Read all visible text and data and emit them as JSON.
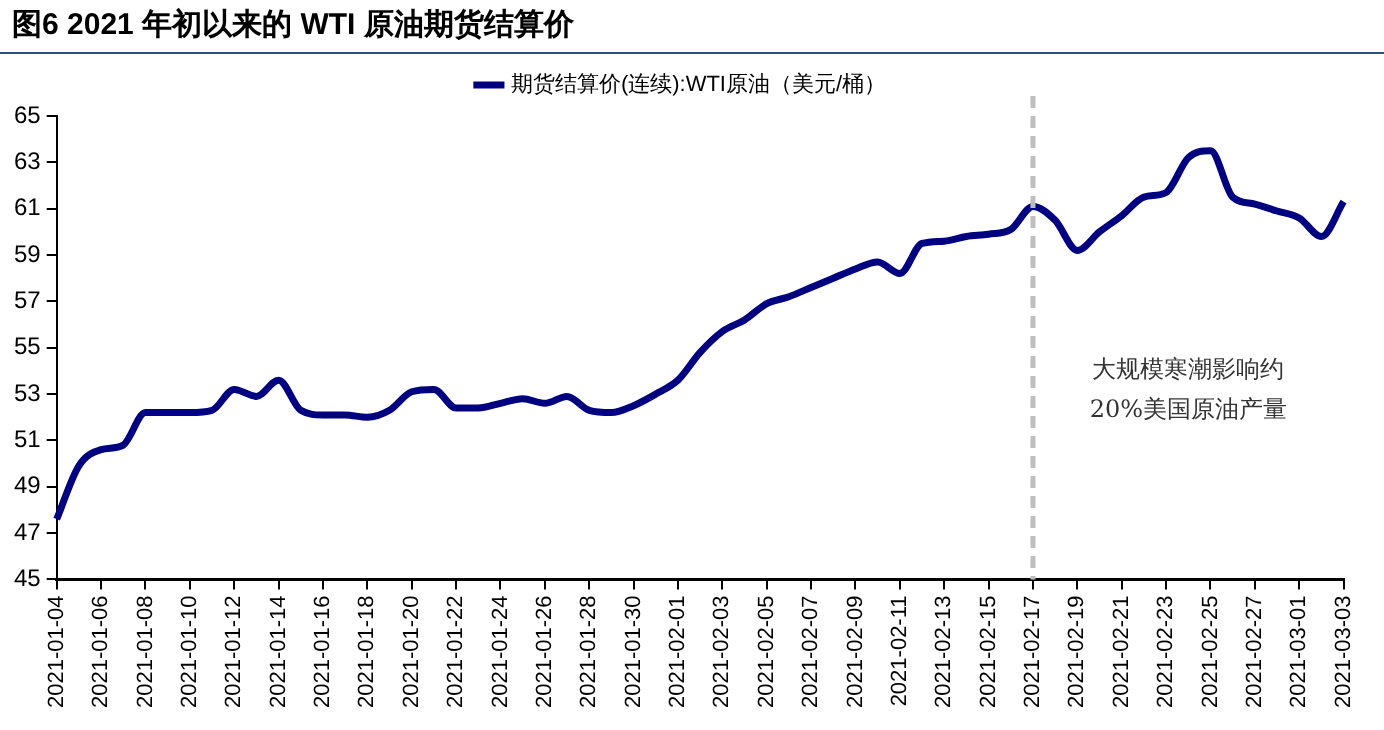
{
  "chart_data": {
    "type": "line",
    "title": "图6  2021 年初以来的 WTI 原油期货结算价",
    "categories": [
      "2021-01-04",
      null,
      "2021-01-06",
      null,
      "2021-01-08",
      null,
      "2021-01-10",
      null,
      "2021-01-12",
      null,
      "2021-01-14",
      null,
      "2021-01-16",
      null,
      "2021-01-18",
      null,
      "2021-01-20",
      null,
      "2021-01-22",
      null,
      "2021-01-24",
      null,
      "2021-01-26",
      null,
      "2021-01-28",
      null,
      "2021-01-30",
      null,
      "2021-02-01",
      null,
      "2021-02-03",
      null,
      "2021-02-05",
      null,
      "2021-02-07",
      null,
      "2021-02-09",
      null,
      "2021-02-11",
      null,
      "2021-02-13",
      null,
      "2021-02-15",
      null,
      "2021-02-17",
      null,
      "2021-02-19",
      null,
      "2021-02-21",
      null,
      "2021-02-23",
      null,
      "2021-02-25",
      null,
      "2021-02-27",
      null,
      "2021-03-01",
      null,
      "2021-03-03"
    ],
    "series": [
      {
        "name": "期货结算价(连续):WTI原油（美元/桶）",
        "color": "#000080",
        "values": [
          47.6,
          49.9,
          50.6,
          50.8,
          52.2,
          52.2,
          52.2,
          52.3,
          53.2,
          52.9,
          53.6,
          52.3,
          52.1,
          52.1,
          52.0,
          52.3,
          53.1,
          53.2,
          52.4,
          52.4,
          52.6,
          52.8,
          52.6,
          52.9,
          52.3,
          52.2,
          52.5,
          53.0,
          53.6,
          54.8,
          55.7,
          56.2,
          56.9,
          57.2,
          57.6,
          58.0,
          58.4,
          58.7,
          58.2,
          59.5,
          59.6,
          59.8,
          59.9,
          60.1,
          61.1,
          60.5,
          59.2,
          60.0,
          60.7,
          61.5,
          61.7,
          63.2,
          63.5,
          61.5,
          61.2,
          60.9,
          60.6,
          59.8,
          61.3
        ]
      }
    ],
    "ylim": [
      45,
      65
    ],
    "yticks": [
      45,
      47,
      49,
      51,
      53,
      55,
      57,
      59,
      61,
      63,
      65
    ],
    "ref_lines": [
      {
        "axis": "x",
        "value": "2021-02-17",
        "color": "#bfbfbf",
        "line_style": "dashed"
      }
    ],
    "annotations": [
      "大规模寒潮影响约20%美国原油产量"
    ],
    "grid": false,
    "legend": "top",
    "marker": "none",
    "line_style": "solid"
  }
}
